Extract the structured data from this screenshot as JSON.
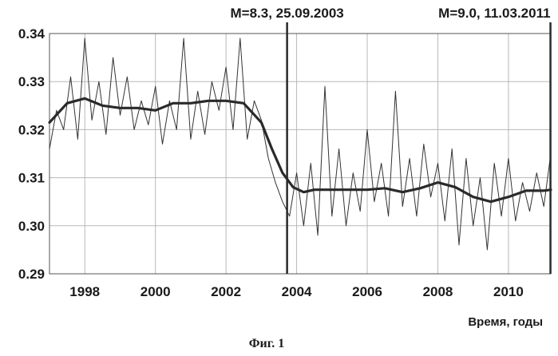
{
  "chart_data": {
    "type": "line",
    "xlabel": "Время, годы",
    "ylabel": "",
    "xlim": [
      1997.0,
      2011.2
    ],
    "ylim": [
      0.29,
      0.34
    ],
    "x_ticks": [
      1998,
      2000,
      2002,
      2004,
      2006,
      2008,
      2010
    ],
    "y_ticks": [
      0.29,
      0.3,
      0.31,
      0.32,
      0.33,
      0.34
    ],
    "x_tick_labels": [
      "1998",
      "2000",
      "2002",
      "2004",
      "2006",
      "2008",
      "2010"
    ],
    "y_tick_labels": [
      "0.29",
      "0.30",
      "0.31",
      "0.32",
      "0.33",
      "0.34"
    ],
    "grid": true,
    "series": [
      {
        "style": "thin",
        "color": "#333333",
        "x": [
          1997.0,
          1997.2,
          1997.4,
          1997.6,
          1997.8,
          1998.0,
          1998.2,
          1998.4,
          1998.6,
          1998.8,
          1999.0,
          1999.2,
          1999.4,
          1999.6,
          1999.8,
          2000.0,
          2000.2,
          2000.4,
          2000.6,
          2000.8,
          2001.0,
          2001.2,
          2001.4,
          2001.6,
          2001.8,
          2002.0,
          2002.2,
          2002.4,
          2002.6,
          2002.8,
          2003.0,
          2003.2,
          2003.4,
          2003.6,
          2003.8,
          2004.0,
          2004.2,
          2004.4,
          2004.6,
          2004.8,
          2005.0,
          2005.2,
          2005.4,
          2005.6,
          2005.8,
          2006.0,
          2006.2,
          2006.4,
          2006.6,
          2006.8,
          2007.0,
          2007.2,
          2007.4,
          2007.6,
          2007.8,
          2008.0,
          2008.2,
          2008.4,
          2008.6,
          2008.8,
          2009.0,
          2009.2,
          2009.4,
          2009.6,
          2009.8,
          2010.0,
          2010.2,
          2010.4,
          2010.6,
          2010.8,
          2011.0,
          2011.2
        ],
        "y": [
          0.316,
          0.324,
          0.32,
          0.331,
          0.318,
          0.339,
          0.322,
          0.33,
          0.319,
          0.335,
          0.323,
          0.331,
          0.32,
          0.326,
          0.321,
          0.329,
          0.317,
          0.326,
          0.32,
          0.339,
          0.318,
          0.328,
          0.319,
          0.33,
          0.324,
          0.333,
          0.32,
          0.339,
          0.318,
          0.326,
          0.322,
          0.314,
          0.309,
          0.305,
          0.302,
          0.311,
          0.3,
          0.313,
          0.298,
          0.329,
          0.302,
          0.316,
          0.3,
          0.311,
          0.303,
          0.32,
          0.305,
          0.313,
          0.302,
          0.328,
          0.304,
          0.314,
          0.302,
          0.317,
          0.306,
          0.313,
          0.301,
          0.316,
          0.296,
          0.314,
          0.3,
          0.31,
          0.295,
          0.313,
          0.302,
          0.314,
          0.301,
          0.309,
          0.303,
          0.311,
          0.304,
          0.315
        ]
      },
      {
        "style": "thick",
        "color": "#2a2a2a",
        "x": [
          1997.0,
          1997.5,
          1998.0,
          1998.5,
          1999.0,
          1999.5,
          2000.0,
          2000.5,
          2001.0,
          2001.5,
          2002.0,
          2002.5,
          2003.0,
          2003.3,
          2003.6,
          2003.9,
          2004.2,
          2004.5,
          2005.0,
          2005.5,
          2006.0,
          2006.5,
          2007.0,
          2007.5,
          2008.0,
          2008.5,
          2009.0,
          2009.5,
          2010.0,
          2010.5,
          2011.0,
          2011.2
        ],
        "y": [
          0.3215,
          0.3255,
          0.3265,
          0.325,
          0.3245,
          0.3245,
          0.324,
          0.3255,
          0.3255,
          0.326,
          0.326,
          0.3255,
          0.3215,
          0.316,
          0.311,
          0.308,
          0.307,
          0.3075,
          0.3075,
          0.3075,
          0.3075,
          0.3078,
          0.307,
          0.3078,
          0.309,
          0.308,
          0.306,
          0.305,
          0.306,
          0.3073,
          0.3073,
          0.3075
        ]
      }
    ],
    "events": [
      {
        "x": 2003.73,
        "label": "M=8.3, 25.09.2003"
      },
      {
        "x": 2011.19,
        "label": "M=9.0, 11.03.2011"
      }
    ],
    "caption": "Фиг. 1"
  }
}
